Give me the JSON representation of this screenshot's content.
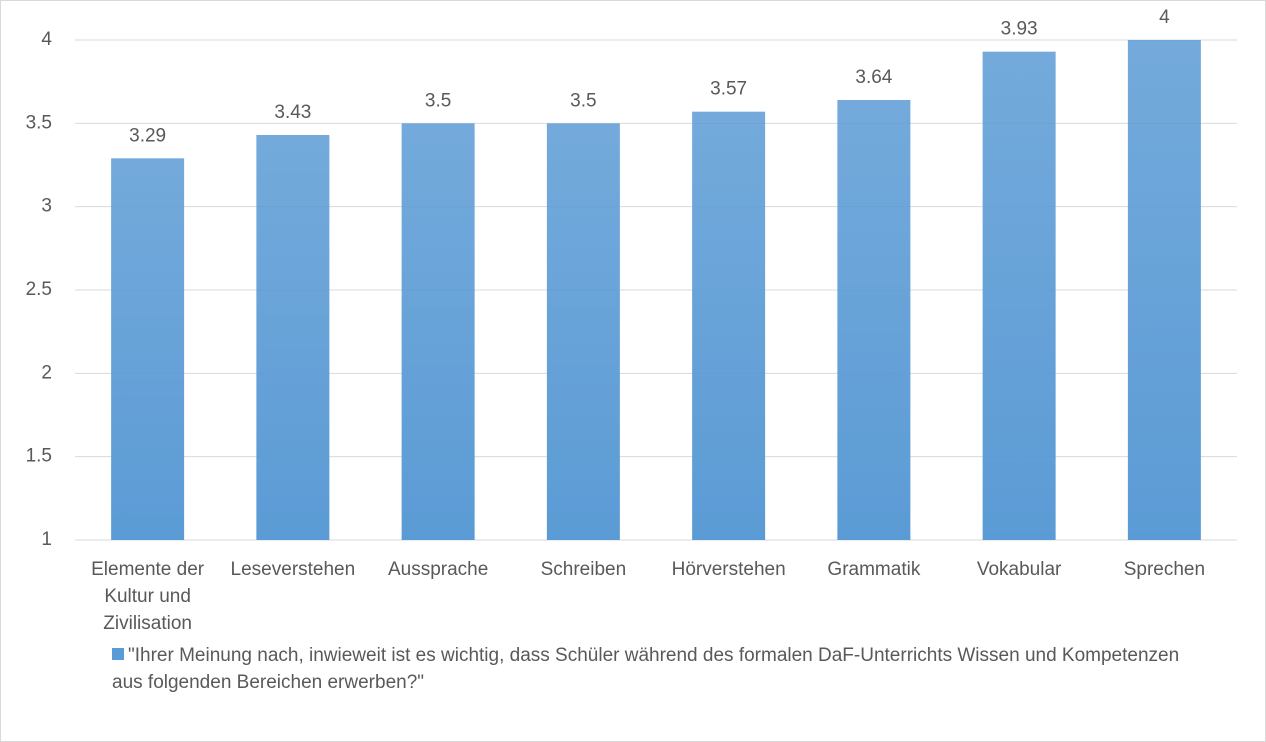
{
  "chart_data": {
    "type": "bar",
    "categories": [
      "Elemente der Kultur und Zivilisation",
      "Leseverstehen",
      "Aussprache",
      "Schreiben",
      "Hörverstehen",
      "Grammatik",
      "Vokabular",
      "Sprechen"
    ],
    "series": [
      {
        "name": "\"Ihrer Meinung nach, inwieweit ist es wichtig, dass Schüler während des formalen DaF-Unterrichts Wissen und Kompetenzen aus folgenden Bereichen erwerben?\"",
        "color": "#5b9bd5",
        "values": [
          3.29,
          3.43,
          3.5,
          3.5,
          3.57,
          3.64,
          3.93,
          4
        ]
      }
    ],
    "ylim": [
      1,
      4
    ],
    "yticks": [
      1,
      1.5,
      2,
      2.5,
      3,
      3.5,
      4
    ],
    "grid": true,
    "legend": "bottom"
  }
}
